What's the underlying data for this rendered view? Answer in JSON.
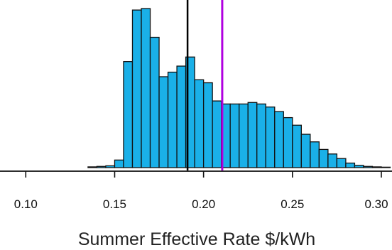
{
  "chart_data": {
    "type": "histogram",
    "title": "",
    "xlabel": "Summer Effective Rate $/kWh",
    "ylabel": "",
    "xlim": [
      0.0895,
      0.306
    ],
    "ylim": [
      0,
      105
    ],
    "grid": false,
    "legend": "none",
    "bar_color": "#1AB0E8",
    "bar_edge_color": "#111111",
    "bin_width": 0.005,
    "bins": [
      {
        "x0": 0.135,
        "count": 0.5
      },
      {
        "x0": 0.14,
        "count": 0.8
      },
      {
        "x0": 0.145,
        "count": 1.2
      },
      {
        "x0": 0.15,
        "count": 5
      },
      {
        "x0": 0.155,
        "count": 70
      },
      {
        "x0": 0.16,
        "count": 104
      },
      {
        "x0": 0.165,
        "count": 105
      },
      {
        "x0": 0.17,
        "count": 86
      },
      {
        "x0": 0.175,
        "count": 60
      },
      {
        "x0": 0.18,
        "count": 63
      },
      {
        "x0": 0.185,
        "count": 67
      },
      {
        "x0": 0.19,
        "count": 73
      },
      {
        "x0": 0.195,
        "count": 58
      },
      {
        "x0": 0.2,
        "count": 56
      },
      {
        "x0": 0.205,
        "count": 44
      },
      {
        "x0": 0.21,
        "count": 42
      },
      {
        "x0": 0.215,
        "count": 42
      },
      {
        "x0": 0.22,
        "count": 42
      },
      {
        "x0": 0.225,
        "count": 43
      },
      {
        "x0": 0.23,
        "count": 42
      },
      {
        "x0": 0.235,
        "count": 40
      },
      {
        "x0": 0.24,
        "count": 37
      },
      {
        "x0": 0.245,
        "count": 33
      },
      {
        "x0": 0.25,
        "count": 28
      },
      {
        "x0": 0.255,
        "count": 22
      },
      {
        "x0": 0.26,
        "count": 17
      },
      {
        "x0": 0.265,
        "count": 12
      },
      {
        "x0": 0.27,
        "count": 9
      },
      {
        "x0": 0.275,
        "count": 6
      },
      {
        "x0": 0.28,
        "count": 3
      },
      {
        "x0": 0.285,
        "count": 1.5
      },
      {
        "x0": 0.29,
        "count": 0.8
      },
      {
        "x0": 0.295,
        "count": 0.5
      },
      {
        "x0": 0.3,
        "count": 0.3
      }
    ],
    "vlines": [
      {
        "x": 0.191,
        "color": "#000000",
        "top": 121
      },
      {
        "x": 0.2105,
        "color": "#B000E0",
        "top": 121
      }
    ],
    "x_ticks": [
      {
        "value": 0.1,
        "label": "0.10"
      },
      {
        "value": 0.15,
        "label": "0.15"
      },
      {
        "value": 0.2,
        "label": "0.20"
      },
      {
        "value": 0.25,
        "label": "0.25"
      },
      {
        "value": 0.3,
        "label": "0.30"
      }
    ]
  }
}
